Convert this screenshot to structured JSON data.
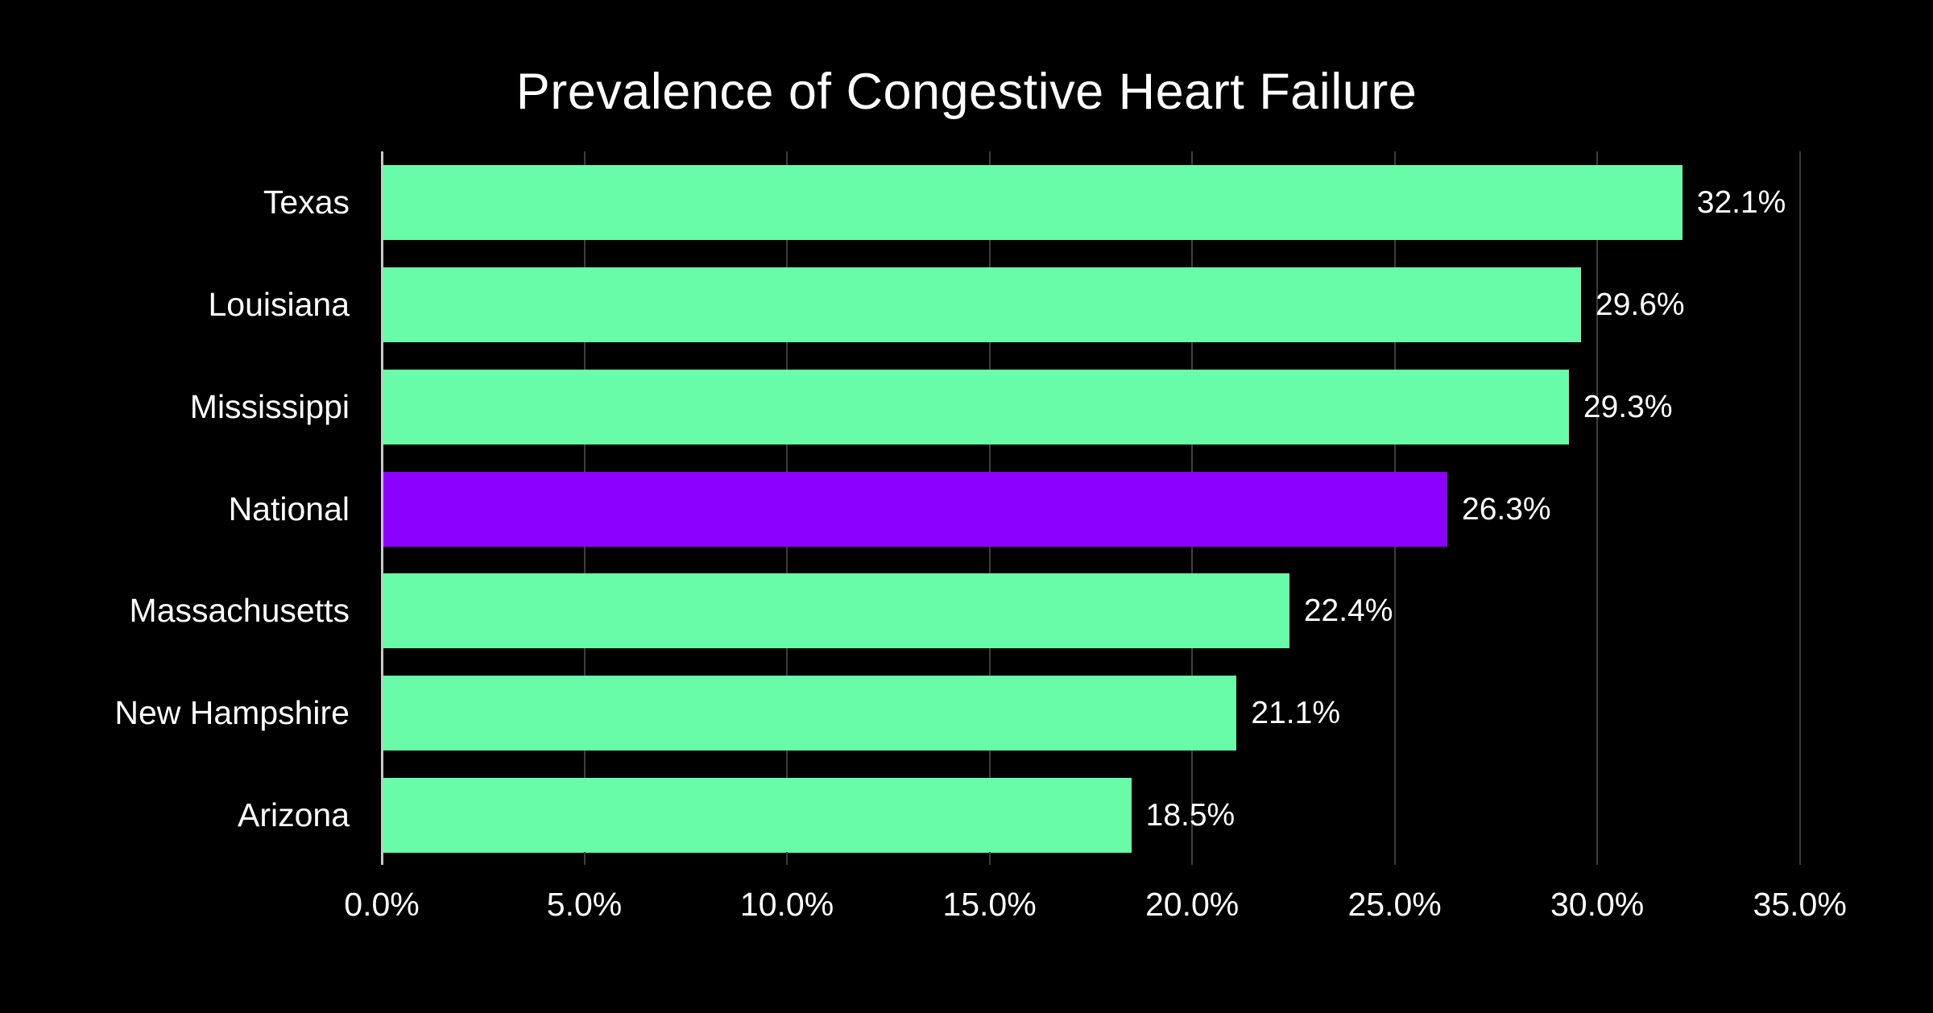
{
  "title": "Prevalence of Congestive Heart Failure",
  "chart_data": {
    "type": "bar",
    "orientation": "horizontal",
    "title": "Prevalence of Congestive Heart Failure",
    "categories": [
      "Texas",
      "Louisiana",
      "Mississippi",
      "National",
      "Massachusetts",
      "New Hampshire",
      "Arizona"
    ],
    "values": [
      32.1,
      29.6,
      29.3,
      26.3,
      22.4,
      21.1,
      18.5
    ],
    "value_labels": [
      "32.1%",
      "29.6%",
      "29.3%",
      "26.3%",
      "22.4%",
      "21.1%",
      "18.5%"
    ],
    "highlight_category": "National",
    "x_tick_values": [
      0,
      5,
      10,
      15,
      20,
      25,
      30,
      35
    ],
    "x_tick_labels": [
      "0.0%",
      "5.0%",
      "10.0%",
      "15.0%",
      "20.0%",
      "25.0%",
      "30.0%",
      "35.0%"
    ],
    "xlim": [
      0,
      36.1
    ],
    "xlabel": "",
    "ylabel": "",
    "grid": true,
    "legend": false,
    "colors": {
      "background": "#000000",
      "bar": "#69fca8",
      "highlight_bar": "#8b00ff",
      "text": "#ffffff",
      "gridline": "#3d3d3d",
      "axis_line": "#c9c9c9"
    }
  }
}
